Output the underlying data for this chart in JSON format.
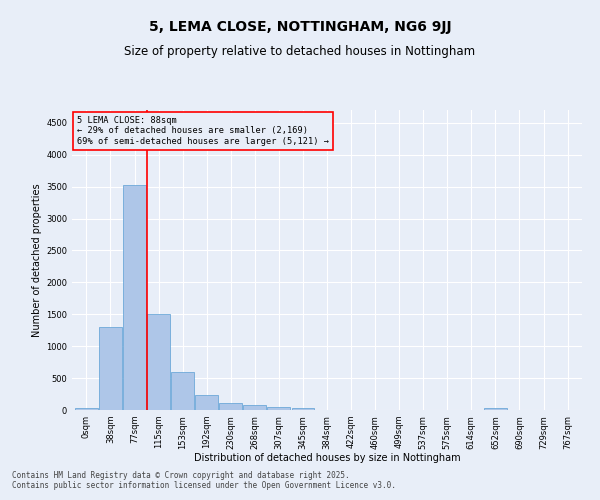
{
  "title_line1": "5, LEMA CLOSE, NOTTINGHAM, NG6 9JJ",
  "title_line2": "Size of property relative to detached houses in Nottingham",
  "xlabel": "Distribution of detached houses by size in Nottingham",
  "ylabel": "Number of detached properties",
  "bar_values": [
    30,
    1300,
    3530,
    1500,
    590,
    240,
    110,
    75,
    45,
    30,
    0,
    0,
    0,
    0,
    0,
    0,
    0,
    30,
    0,
    0,
    0
  ],
  "x_labels": [
    "0sqm",
    "38sqm",
    "77sqm",
    "115sqm",
    "153sqm",
    "192sqm",
    "230sqm",
    "268sqm",
    "307sqm",
    "345sqm",
    "384sqm",
    "422sqm",
    "460sqm",
    "499sqm",
    "537sqm",
    "575sqm",
    "614sqm",
    "652sqm",
    "690sqm",
    "729sqm",
    "767sqm"
  ],
  "bar_color": "#aec6e8",
  "bar_edge_color": "#5a9fd4",
  "vline_x": 2.5,
  "vline_color": "red",
  "annotation_text": "5 LEMA CLOSE: 88sqm\n← 29% of detached houses are smaller (2,169)\n69% of semi-detached houses are larger (5,121) →",
  "annotation_box_color": "red",
  "ylim": [
    0,
    4700
  ],
  "yticks": [
    0,
    500,
    1000,
    1500,
    2000,
    2500,
    3000,
    3500,
    4000,
    4500
  ],
  "background_color": "#e8eef8",
  "grid_color": "#ffffff",
  "footer_line1": "Contains HM Land Registry data © Crown copyright and database right 2025.",
  "footer_line2": "Contains public sector information licensed under the Open Government Licence v3.0.",
  "title_fontsize": 10,
  "subtitle_fontsize": 8.5,
  "label_fontsize": 7,
  "tick_fontsize": 6,
  "footer_fontsize": 5.5
}
